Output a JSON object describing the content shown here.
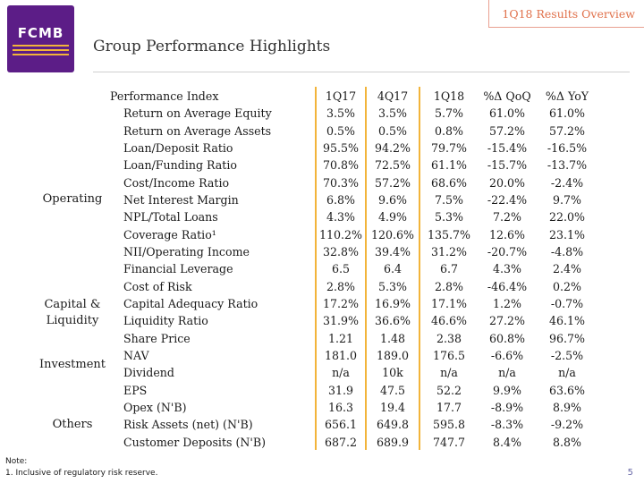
{
  "header": {
    "section_title": "1Q18 Results Overview",
    "logo_text": "FCMB",
    "page_title": "Group Performance Highlights"
  },
  "table": {
    "header_label": "Performance Index",
    "col_labels": [
      "1Q17",
      "4Q17",
      "1Q18",
      "%Δ QoQ",
      "%Δ YoY"
    ],
    "rows": [
      {
        "label": "Return on Average Equity",
        "values": [
          "3.5%",
          "3.5%",
          "5.7%",
          "61.0%",
          "61.0%"
        ]
      },
      {
        "label": "Return on Average Assets",
        "values": [
          "0.5%",
          "0.5%",
          "0.8%",
          "57.2%",
          "57.2%"
        ]
      },
      {
        "label": "Loan/Deposit Ratio",
        "values": [
          "95.5%",
          "94.2%",
          "79.7%",
          "-15.4%",
          "-16.5%"
        ]
      },
      {
        "label": "Loan/Funding Ratio",
        "values": [
          "70.8%",
          "72.5%",
          "61.1%",
          "-15.7%",
          "-13.7%"
        ]
      },
      {
        "label": "Cost/Income Ratio",
        "values": [
          "70.3%",
          "57.2%",
          "68.6%",
          "20.0%",
          "-2.4%"
        ]
      },
      {
        "label": "Net Interest Margin",
        "values": [
          "6.8%",
          "9.6%",
          "7.5%",
          "-22.4%",
          "9.7%"
        ]
      },
      {
        "label": "NPL/Total Loans",
        "values": [
          "4.3%",
          "4.9%",
          "5.3%",
          "7.2%",
          "22.0%"
        ]
      },
      {
        "label": "Coverage Ratio¹",
        "values": [
          "110.2%",
          "120.6%",
          "135.7%",
          "12.6%",
          "23.1%"
        ]
      },
      {
        "label": "NII/Operating Income",
        "values": [
          "32.8%",
          "39.4%",
          "31.2%",
          "-20.7%",
          "-4.8%"
        ]
      },
      {
        "label": "Financial Leverage",
        "values": [
          "6.5",
          "6.4",
          "6.7",
          "4.3%",
          "2.4%"
        ]
      },
      {
        "label": "Cost of Risk",
        "values": [
          "2.8%",
          "5.3%",
          "2.8%",
          "-46.4%",
          "0.2%"
        ]
      },
      {
        "label": "Capital Adequacy Ratio",
        "values": [
          "17.2%",
          "16.9%",
          "17.1%",
          "1.2%",
          "-0.7%"
        ]
      },
      {
        "label": "Liquidity Ratio",
        "values": [
          "31.9%",
          "36.6%",
          "46.6%",
          "27.2%",
          "46.1%"
        ]
      },
      {
        "label": "Share Price",
        "values": [
          "1.21",
          "1.48",
          "2.38",
          "60.8%",
          "96.7%"
        ]
      },
      {
        "label": "NAV",
        "values": [
          "181.0",
          "189.0",
          "176.5",
          "-6.6%",
          "-2.5%"
        ]
      },
      {
        "label": "Dividend",
        "values": [
          "n/a",
          "10k",
          "n/a",
          "n/a",
          "n/a"
        ]
      },
      {
        "label": "EPS",
        "values": [
          "31.9",
          "47.5",
          "52.2",
          "9.9%",
          "63.6%"
        ]
      },
      {
        "label": "Opex (N'B)",
        "values": [
          "16.3",
          "19.4",
          "17.7",
          "-8.9%",
          "8.9%"
        ]
      },
      {
        "label": "Risk Assets (net) (N'B)",
        "values": [
          "656.1",
          "649.8",
          "595.8",
          "-8.3%",
          "-9.2%"
        ]
      },
      {
        "label": "Customer Deposits (N'B)",
        "values": [
          "687.2",
          "689.9",
          "747.7",
          "8.4%",
          "8.8%"
        ]
      }
    ],
    "categories": {
      "operating": "Operating",
      "capital_line1": "Capital &",
      "capital_line2": "Liquidity",
      "investment": "Investment",
      "others": "Others"
    }
  },
  "footer": {
    "note_label": "Note:",
    "note_text": "1. Inclusive of regulatory risk reserve.",
    "page_number": "5"
  },
  "colors": {
    "brand_purple": "#5c1d87",
    "accent_gold": "#f2b43a",
    "accent_orange": "#e0704a"
  }
}
